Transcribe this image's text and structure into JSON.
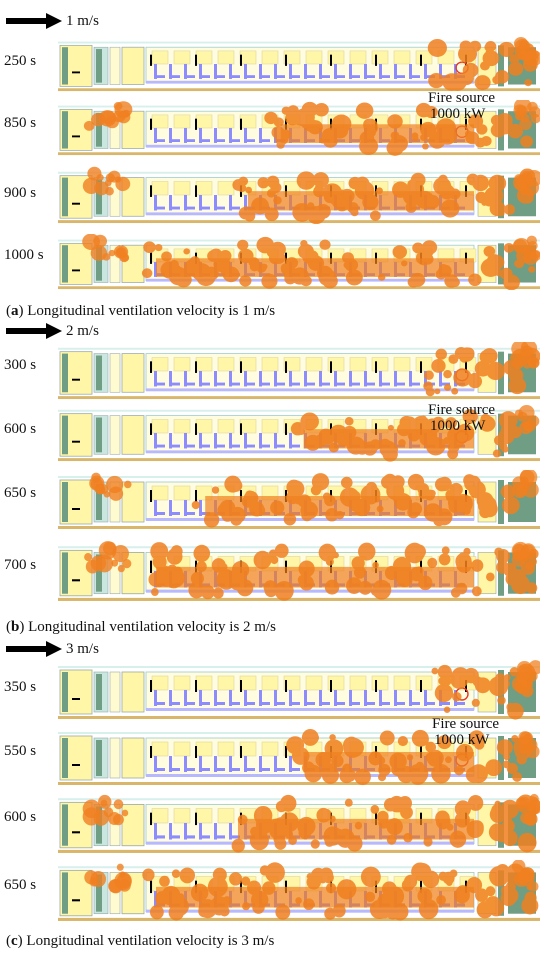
{
  "sections": [
    {
      "velocity": "1 m/s",
      "caption_letter": "a",
      "caption_text": " Longitudinal ventilation velocity is 1 m/s",
      "times": [
        "250 s",
        "850 s",
        "900 s",
        "1000 s"
      ],
      "fire_spread": [
        0.12,
        0.62,
        0.72,
        1.0
      ]
    },
    {
      "velocity": "2 m/s",
      "caption_letter": "b",
      "caption_text": " Longitudinal ventilation velocity is 2 m/s",
      "times": [
        "300 s",
        "600 s",
        "650 s",
        "700 s"
      ],
      "fire_spread": [
        0.15,
        0.55,
        0.85,
        1.0
      ]
    },
    {
      "velocity": "3 m/s",
      "caption_letter": "c",
      "caption_text": " Longitudinal ventilation velocity is 3 m/s",
      "times": [
        "350 s",
        "550 s",
        "600 s",
        "650 s"
      ],
      "fire_spread": [
        0.12,
        0.55,
        0.75,
        1.0
      ]
    }
  ],
  "fire_source": {
    "line1": "Fire source",
    "line2": "1000 kW"
  },
  "colors": {
    "smoke": "#f08020",
    "carriage": "#fff6a8",
    "seats": "#8c8cff",
    "end_block": "#6f9e84",
    "rail": "#d9b66a",
    "marker": "#e23b2e"
  }
}
